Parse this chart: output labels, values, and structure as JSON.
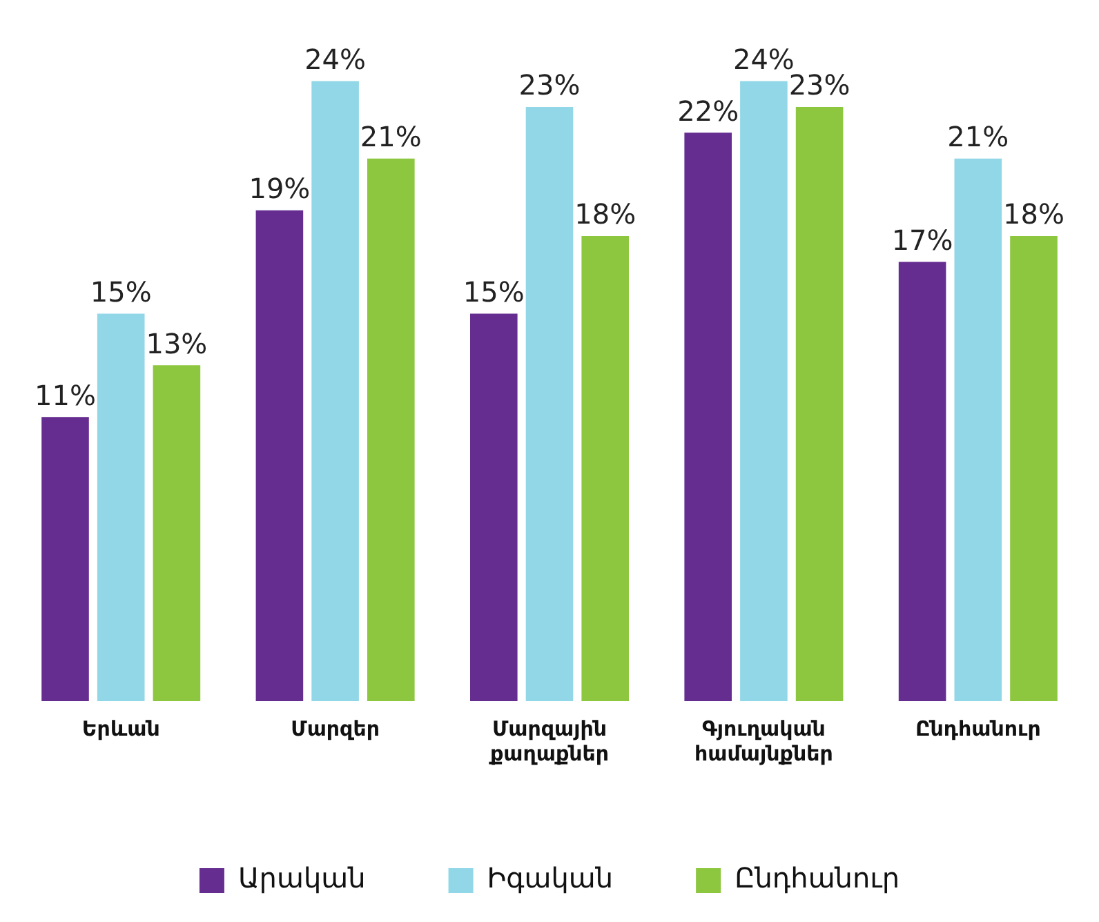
{
  "chart_data": {
    "type": "bar",
    "categories": [
      "Երևան",
      "Մարզեր",
      "Մարզային քաղաքներ",
      "Գյուղական համայնքներ",
      "Ընդհանուր"
    ],
    "series": [
      {
        "name": "Արական",
        "color": "#662d91",
        "values": [
          11,
          19,
          15,
          22,
          17
        ],
        "value_labels": [
          "11%",
          "19%",
          "15%",
          "22%",
          "17%"
        ]
      },
      {
        "name": "Իգական",
        "color": "#92d7e7",
        "values": [
          15,
          24,
          23,
          24,
          21
        ],
        "value_labels": [
          "15%",
          "24%",
          "23%",
          "24%",
          "21%"
        ]
      },
      {
        "name": "Ընդհանուր",
        "color": "#8dc63f",
        "values": [
          13,
          21,
          18,
          23,
          18
        ],
        "value_labels": [
          "13%",
          "21%",
          "18%",
          "23%",
          "18%"
        ]
      }
    ],
    "tick_labels": "x",
    "grid": false,
    "legend": "bottom"
  }
}
